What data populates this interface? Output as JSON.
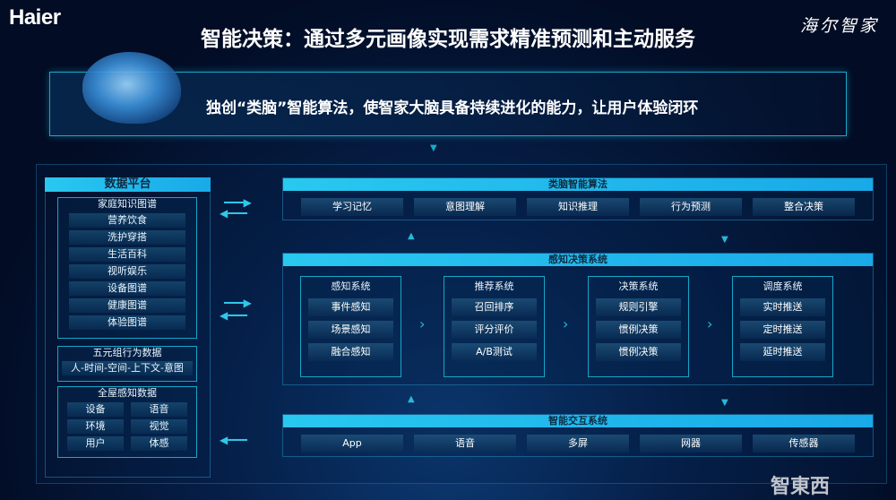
{
  "header": {
    "logo": "Haier",
    "title": "智能决策：通过多元画像实现需求精准预测和主动服务",
    "signature": "海尔智家"
  },
  "banner": {
    "slogan": "独创“类脑”智能算法，使智家大脑具备持续进化的能力，让用户体验闭环"
  },
  "data_platform": {
    "title": "数据平台",
    "knowledge": {
      "title": "家庭知识图谱",
      "items": [
        "营养饮食",
        "洗护穿搭",
        "生活百科",
        "视听娱乐",
        "设备图谱",
        "健康图谱",
        "体验图谱"
      ]
    },
    "behavior": {
      "title": "五元组行为数据",
      "items": [
        "人-时间-空间-上下文-意图"
      ]
    },
    "perception": {
      "title": "全屋感知数据",
      "items": [
        "设备",
        "语音",
        "环境",
        "视觉",
        "用户",
        "体感"
      ]
    }
  },
  "algorithm": {
    "title": "类脑智能算法",
    "items": [
      "学习记忆",
      "意图理解",
      "知识推理",
      "行为预测",
      "整合决策"
    ]
  },
  "decision_system": {
    "title": "感知决策系统",
    "systems": [
      {
        "title": "感知系统",
        "items": [
          "事件感知",
          "场景感知",
          "融合感知"
        ]
      },
      {
        "title": "推荐系统",
        "items": [
          "召回排序",
          "评分评价",
          "A/B测试"
        ]
      },
      {
        "title": "决策系统",
        "items": [
          "规则引擎",
          "惯例决策",
          "惯例决策"
        ]
      },
      {
        "title": "调度系统",
        "items": [
          "实时推送",
          "定时推送",
          "延时推送"
        ]
      }
    ]
  },
  "interaction": {
    "title": "智能交互系统",
    "items": [
      "App",
      "语音",
      "多屏",
      "网器",
      "传感器"
    ]
  },
  "watermark": "智東西",
  "colors": {
    "accent": "#29c8f0",
    "border": "#17a6c8"
  }
}
